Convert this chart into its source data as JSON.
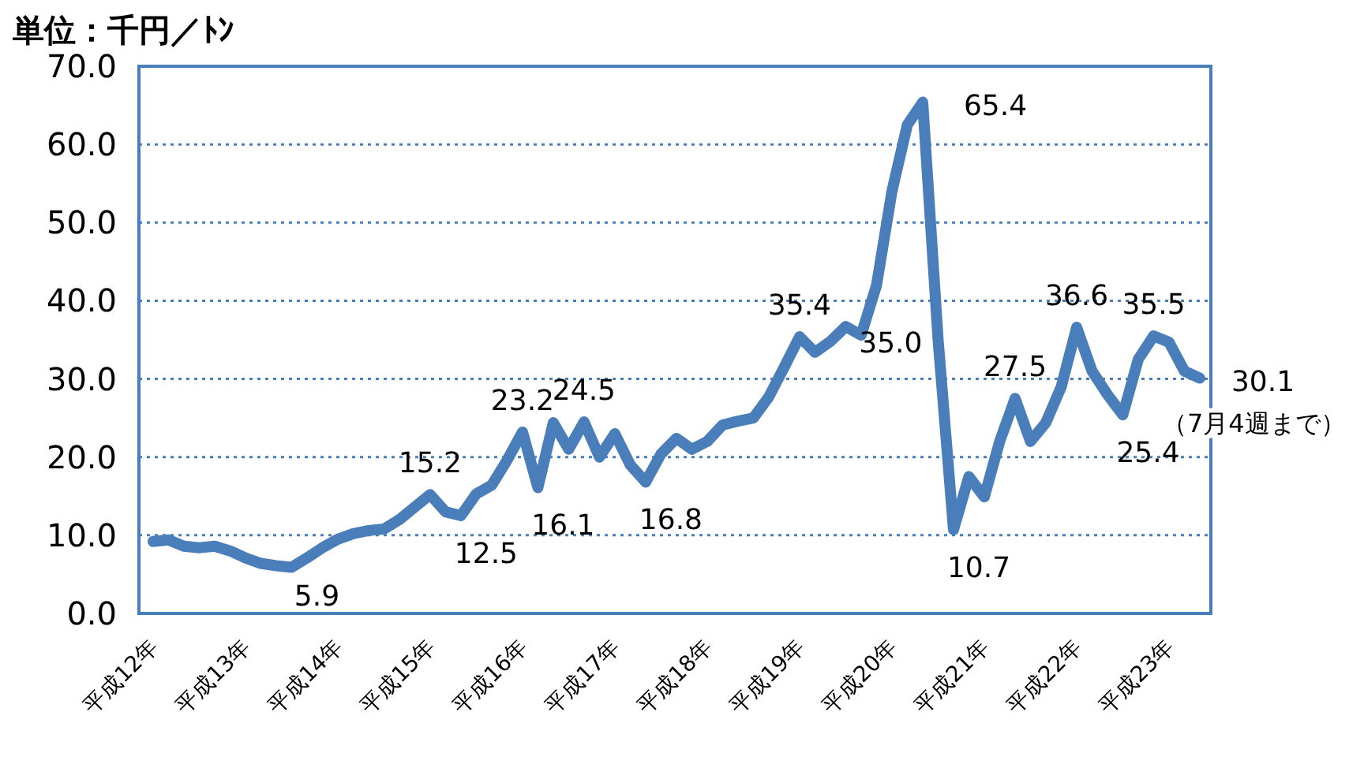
{
  "chart_data": {
    "type": "line",
    "ylabel": "単位：千円／ﾄﾝ",
    "categories": [
      "平成12年",
      null,
      null,
      null,
      null,
      null,
      "平成13年",
      null,
      null,
      null,
      null,
      null,
      "平成14年",
      null,
      null,
      null,
      null,
      null,
      "平成15年",
      null,
      null,
      null,
      null,
      null,
      "平成16年",
      null,
      null,
      null,
      null,
      null,
      "平成17年",
      null,
      null,
      null,
      null,
      null,
      "平成18年",
      null,
      null,
      null,
      null,
      null,
      "平成19年",
      null,
      null,
      null,
      null,
      null,
      "平成20年",
      null,
      null,
      null,
      null,
      null,
      "平成21年",
      null,
      null,
      null,
      null,
      null,
      "平成22年",
      null,
      null,
      null,
      null,
      null,
      "平成23年",
      null,
      null
    ],
    "ylim": [
      0,
      70
    ],
    "yticks": [
      {
        "value": 0,
        "label": "0.0"
      },
      {
        "value": 10,
        "label": "10.0"
      },
      {
        "value": 20,
        "label": "20.0"
      },
      {
        "value": 30,
        "label": "30.0"
      },
      {
        "value": 40,
        "label": "40.0"
      },
      {
        "value": 50,
        "label": "50.0"
      },
      {
        "value": 60,
        "label": "60.0"
      },
      {
        "value": 70,
        "label": "70.0"
      }
    ],
    "grid": "y",
    "line_style": "solid",
    "series": [
      {
        "color": "#4a7ebb",
        "values": [
          9.2,
          9.4,
          8.6,
          8.4,
          8.6,
          8.0,
          7.1,
          6.4,
          6.1,
          5.9,
          7.1,
          8.4,
          9.5,
          10.2,
          10.6,
          10.8,
          12.0,
          13.6,
          15.2,
          13.0,
          12.5,
          15.3,
          16.4,
          19.6,
          23.2,
          16.1,
          24.4,
          21.0,
          24.5,
          20.0,
          23.0,
          19.0,
          16.8,
          20.4,
          22.4,
          21.0,
          22.0,
          24.1,
          24.6,
          25.0,
          27.7,
          31.5,
          35.4,
          33.4,
          34.8,
          36.7,
          35.6,
          42.0,
          54.0,
          62.5,
          65.4,
          35.0,
          10.7,
          17.5,
          14.9,
          22.0,
          27.5,
          22.0,
          24.4,
          29.0,
          36.6,
          31.0,
          28.0,
          25.4,
          32.5,
          35.5,
          34.7,
          31.0,
          30.1
        ],
        "value_labels": [
          null,
          null,
          null,
          null,
          null,
          null,
          null,
          null,
          null,
          "5.9",
          null,
          null,
          null,
          null,
          null,
          null,
          null,
          null,
          "15.2",
          null,
          "12.5",
          null,
          null,
          null,
          "23.2",
          "16.1",
          null,
          null,
          "24.5",
          null,
          null,
          null,
          "16.8",
          null,
          null,
          null,
          null,
          null,
          null,
          null,
          null,
          null,
          "35.4",
          null,
          null,
          null,
          null,
          null,
          null,
          null,
          "65.4",
          "35.0",
          "10.7",
          null,
          null,
          null,
          "27.5",
          null,
          null,
          null,
          "36.6",
          null,
          null,
          "25.4",
          null,
          "35.5",
          null,
          null,
          "30.1"
        ]
      }
    ],
    "annotations": [
      "（7月4週まで）"
    ]
  }
}
